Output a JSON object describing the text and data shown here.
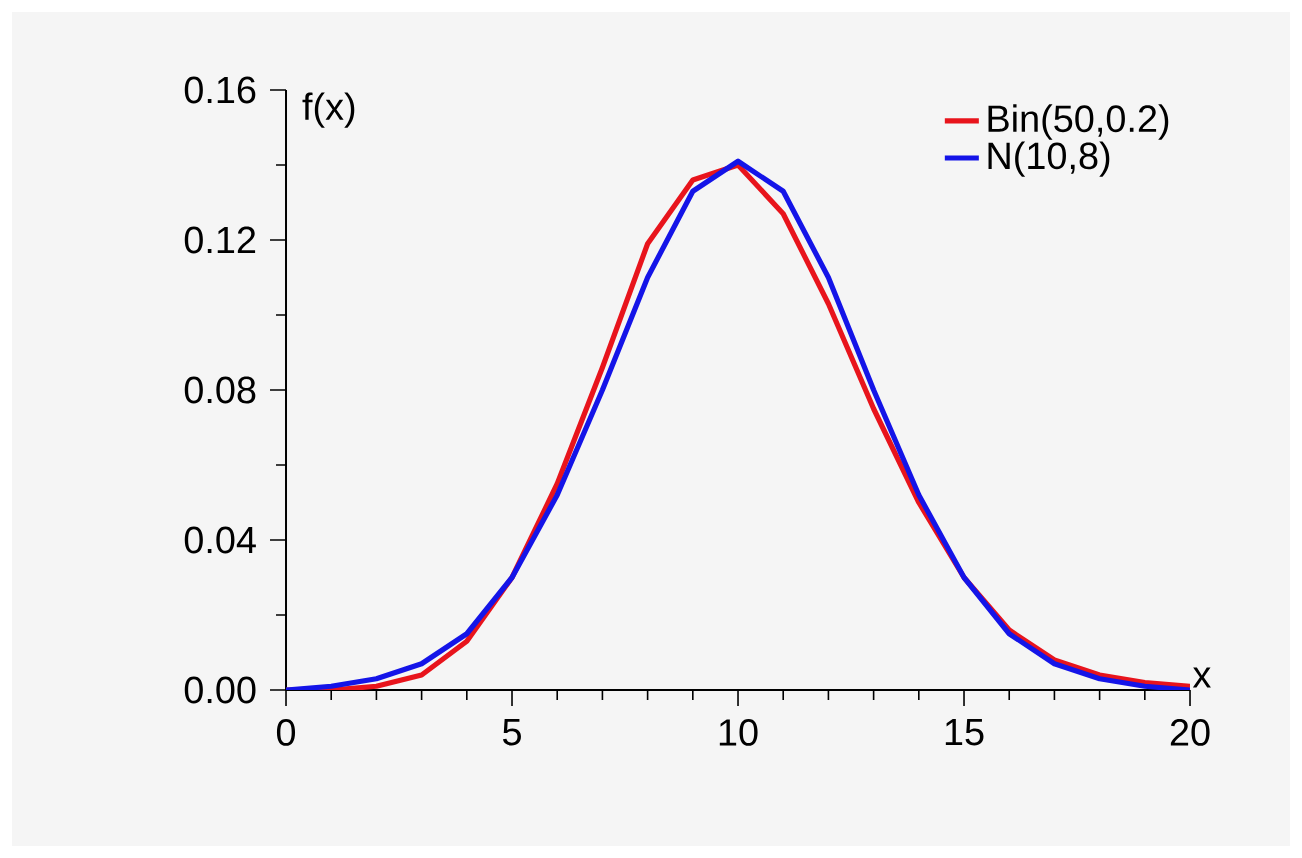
{
  "chart_data": {
    "type": "line",
    "xlabel": "x",
    "ylabel": "f(x)",
    "x": [
      0,
      1,
      2,
      3,
      4,
      5,
      6,
      7,
      8,
      9,
      10,
      11,
      12,
      13,
      14,
      15,
      16,
      17,
      18,
      19,
      20
    ],
    "series": [
      {
        "name": "Bin(50,0.2)",
        "color": "#e8141c",
        "values": [
          0.0,
          0.0,
          0.001,
          0.004,
          0.013,
          0.03,
          0.055,
          0.086,
          0.119,
          0.136,
          0.14,
          0.127,
          0.103,
          0.075,
          0.05,
          0.03,
          0.016,
          0.008,
          0.004,
          0.002,
          0.001
        ]
      },
      {
        "name": "N(10,8)",
        "color": "#1414e8",
        "values": [
          0.0,
          0.001,
          0.003,
          0.007,
          0.015,
          0.03,
          0.052,
          0.08,
          0.11,
          0.133,
          0.141,
          0.133,
          0.11,
          0.08,
          0.052,
          0.03,
          0.015,
          0.007,
          0.003,
          0.001,
          0.0
        ]
      }
    ],
    "xlim": [
      0,
      20
    ],
    "ylim": [
      0,
      0.16
    ],
    "xticks": [
      0,
      5,
      10,
      15,
      20
    ],
    "yticks": [
      {
        "value": 0,
        "label": "0.00"
      },
      {
        "value": 0.04,
        "label": "0.04"
      },
      {
        "value": 0.08,
        "label": "0.08"
      },
      {
        "value": 0.12,
        "label": "0.12"
      },
      {
        "value": 0.16,
        "label": "0.16"
      }
    ],
    "legend": "top right",
    "grid": false,
    "marker": "none",
    "line_style": "solid"
  }
}
